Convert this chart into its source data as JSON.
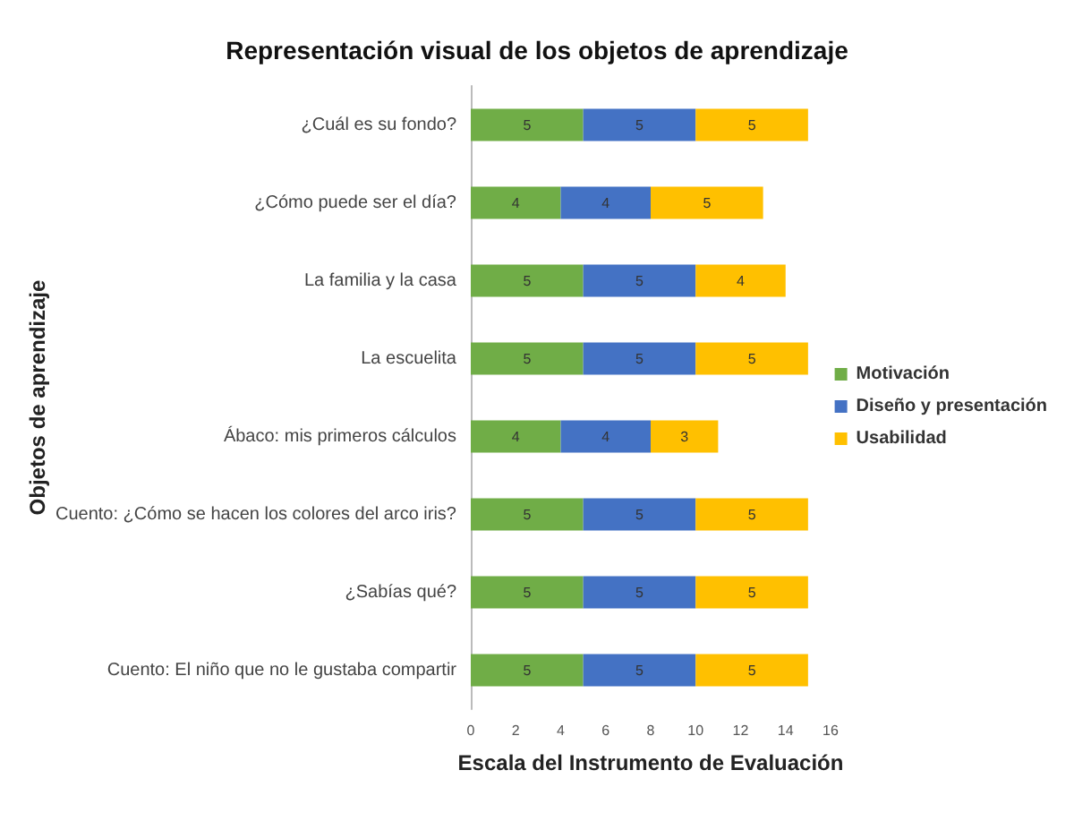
{
  "chart_data": {
    "type": "bar",
    "orientation": "horizontal",
    "stacked": true,
    "title": "Representación visual de los objetos de aprendizaje",
    "xlabel": "Escala del Instrumento de Evaluación",
    "ylabel": "Objetos de aprendizaje",
    "categories": [
      "¿Cuál es su fondo?",
      "¿Cómo puede ser el día?",
      "La familia y la casa",
      "La escuelita",
      "Ábaco: mis primeros cálculos",
      "Cuento: ¿Cómo se hacen los colores del arco iris?",
      "¿Sabías qué?",
      "Cuento: El niño que no le gustaba compartir"
    ],
    "series": [
      {
        "name": "Motivación",
        "color": "#70ad47",
        "values": [
          5,
          4,
          5,
          5,
          4,
          5,
          5,
          5
        ]
      },
      {
        "name": "Diseño y presentación",
        "color": "#4472c4",
        "values": [
          5,
          4,
          5,
          5,
          4,
          5,
          5,
          5
        ]
      },
      {
        "name": "Usabilidad",
        "color": "#ffc000",
        "values": [
          5,
          5,
          4,
          5,
          3,
          5,
          5,
          5
        ]
      }
    ],
    "xlim": [
      0,
      16
    ],
    "xticks": [
      0,
      2,
      4,
      6,
      8,
      10,
      12,
      14,
      16
    ],
    "grid": false,
    "legend": "right",
    "data_labels": true
  }
}
